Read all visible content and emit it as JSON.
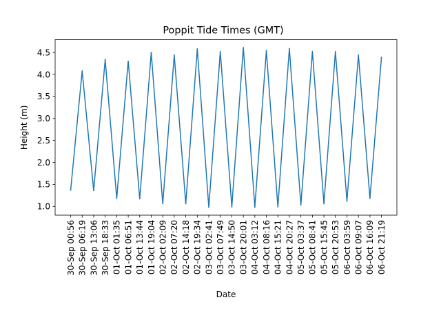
{
  "chart_data": {
    "type": "line",
    "title": "Poppit Tide Times (GMT)",
    "xlabel": "Date",
    "ylabel": "Height (m)",
    "categories": [
      "30-Sep 00:56",
      "30-Sep 06:19",
      "30-Sep 13:06",
      "30-Sep 18:33",
      "01-Oct 01:35",
      "01-Oct 06:51",
      "01-Oct 13:44",
      "01-Oct 19:04",
      "02-Oct 02:09",
      "02-Oct 07:20",
      "02-Oct 14:18",
      "02-Oct 19:34",
      "03-Oct 02:41",
      "03-Oct 07:49",
      "03-Oct 14:50",
      "03-Oct 20:01",
      "04-Oct 03:12",
      "04-Oct 08:16",
      "04-Oct 15:21",
      "04-Oct 20:27",
      "05-Oct 03:37",
      "05-Oct 08:41",
      "05-Oct 15:45",
      "05-Oct 20:53",
      "06-Oct 03:59",
      "06-Oct 09:07",
      "06-Oct 16:09",
      "06-Oct 21:19"
    ],
    "series": [
      {
        "values": [
          1.37,
          4.08,
          1.36,
          4.34,
          1.18,
          4.3,
          1.17,
          4.5,
          1.06,
          4.44,
          1.06,
          4.58,
          0.98,
          4.52,
          0.99,
          4.61,
          0.98,
          4.54,
          0.99,
          4.59,
          1.03,
          4.52,
          1.06,
          4.52,
          1.12,
          4.44,
          1.18,
          4.39
        ],
        "color": "#1f77b4"
      }
    ],
    "ylim": [
      0.8,
      4.79
    ],
    "yticks": [
      "1.0",
      "1.5",
      "2.0",
      "2.5",
      "3.0",
      "3.5",
      "4.0",
      "4.5"
    ],
    "grid": false,
    "legend": "none"
  }
}
